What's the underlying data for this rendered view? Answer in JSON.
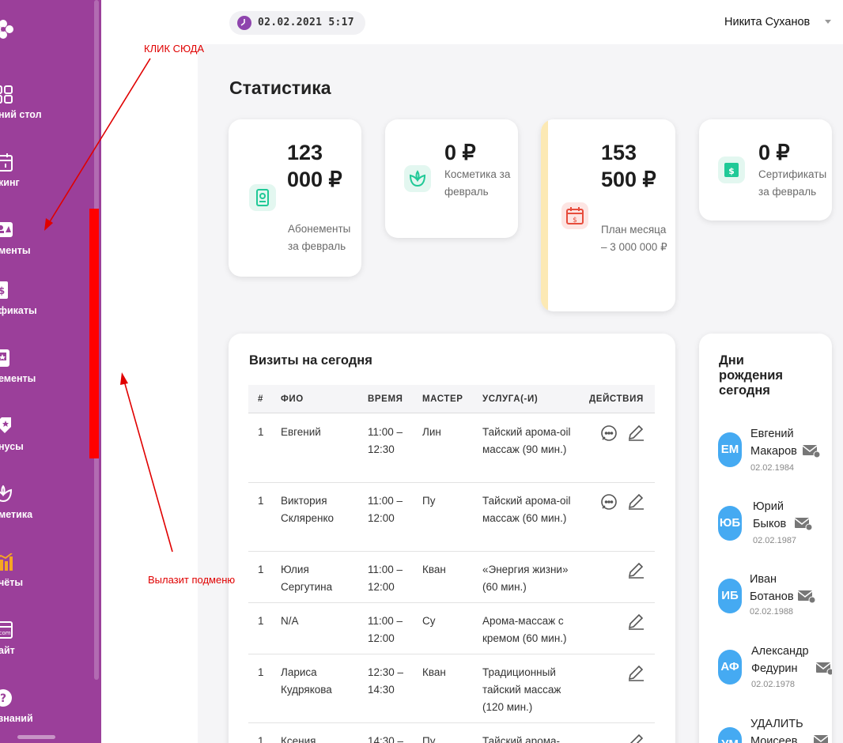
{
  "sidebar": {
    "items": [
      {
        "label": "ний стол",
        "icon": "grid-icon"
      },
      {
        "label": "кинг",
        "icon": "calendar-icon"
      },
      {
        "label": "менты",
        "icon": "clients-icon"
      },
      {
        "label": "фикаты",
        "icon": "certificate-icon"
      },
      {
        "label": "ементы",
        "icon": "subscription-icon"
      },
      {
        "label": "нусы",
        "icon": "bonus-icon"
      },
      {
        "label": "метика",
        "icon": "lotus-icon"
      },
      {
        "label": "чёты",
        "icon": "chart-icon"
      },
      {
        "label": "айт",
        "icon": "website-icon"
      },
      {
        "label": "знаний",
        "icon": "help-icon"
      }
    ]
  },
  "header": {
    "datetime": "02.02.2021 5:17",
    "user_name": "Никита Суханов"
  },
  "page_title": "Статистика",
  "stats": [
    {
      "value": "123 000 ₽",
      "caption": "Абонементы за февраль",
      "icon": "subscription-icon",
      "color": "#20c997"
    },
    {
      "value": "0 ₽",
      "caption": "Косметика за февраль",
      "icon": "lotus-icon",
      "color": "#20c997"
    },
    {
      "value": "153 500 ₽",
      "caption": "План месяца – 3 000 000 ₽",
      "icon": "calendar-money-icon",
      "color": "#e74c3c",
      "accent": "#fce9b4"
    },
    {
      "value": "0 ₽",
      "caption": "Сертификаты за февраль",
      "icon": "certificate-icon",
      "color": "#20c997"
    }
  ],
  "visits": {
    "title": "Визиты на сегодня",
    "columns": [
      "#",
      "ФИО",
      "ВРЕМЯ",
      "МАСТЕР",
      "УСЛУГА(-И)",
      "ДЕЙСТВИЯ"
    ],
    "rows": [
      {
        "num": "1",
        "name": "Евгений",
        "time": "11:00 – 12:30",
        "master": "Лин",
        "service": "Тайский арома-oil массаж (90 мин.)",
        "comment": true
      },
      {
        "num": "1",
        "name": "Виктория Скляренко",
        "time": "11:00 – 12:00",
        "master": "Пу",
        "service": "Тайский арома-oil массаж (60 мин.)",
        "comment": true
      },
      {
        "num": "1",
        "name": "Юлия Сергутина",
        "time": "11:00 – 12:00",
        "master": "Кван",
        "service": "«Энергия жизни» (60 мин.)",
        "comment": false
      },
      {
        "num": "1",
        "name": "N/A",
        "time": "11:00 – 12:00",
        "master": "Су",
        "service": "Арома-массаж с кремом (60 мин.)",
        "comment": false
      },
      {
        "num": "1",
        "name": "Лариса Кудрякова",
        "time": "12:30 – 14:30",
        "master": "Кван",
        "service": "Традиционный тайский массаж (120 мин.)",
        "comment": false
      },
      {
        "num": "1",
        "name": "Ксения",
        "time": "14:30 –",
        "master": "Пу",
        "service": "Тайский арома-",
        "comment": false
      }
    ]
  },
  "birthdays": {
    "title": "Дни рождения сегодня",
    "people": [
      {
        "initials": "ЕМ",
        "name": "Евгений Макаров",
        "date": "02.02.1984"
      },
      {
        "initials": "ЮБ",
        "name": "Юрий Быков",
        "date": "02.02.1987"
      },
      {
        "initials": "ИБ",
        "name": "Иван Ботанов",
        "date": "02.02.1988"
      },
      {
        "initials": "АФ",
        "name": "Александр Федурин",
        "date": "02.02.1978"
      },
      {
        "initials": "УМ",
        "name": "УДАЛИТЬ Моисеев",
        "date": ""
      }
    ]
  },
  "annotations": {
    "click_here": "КЛИК СЮДА",
    "submenu": "Вылазит подменю"
  },
  "colors": {
    "sidebar": "#9b3f9a",
    "accent_green": "#20c997",
    "avatar_blue": "#45aaf2",
    "annotation_red": "#e00000"
  }
}
